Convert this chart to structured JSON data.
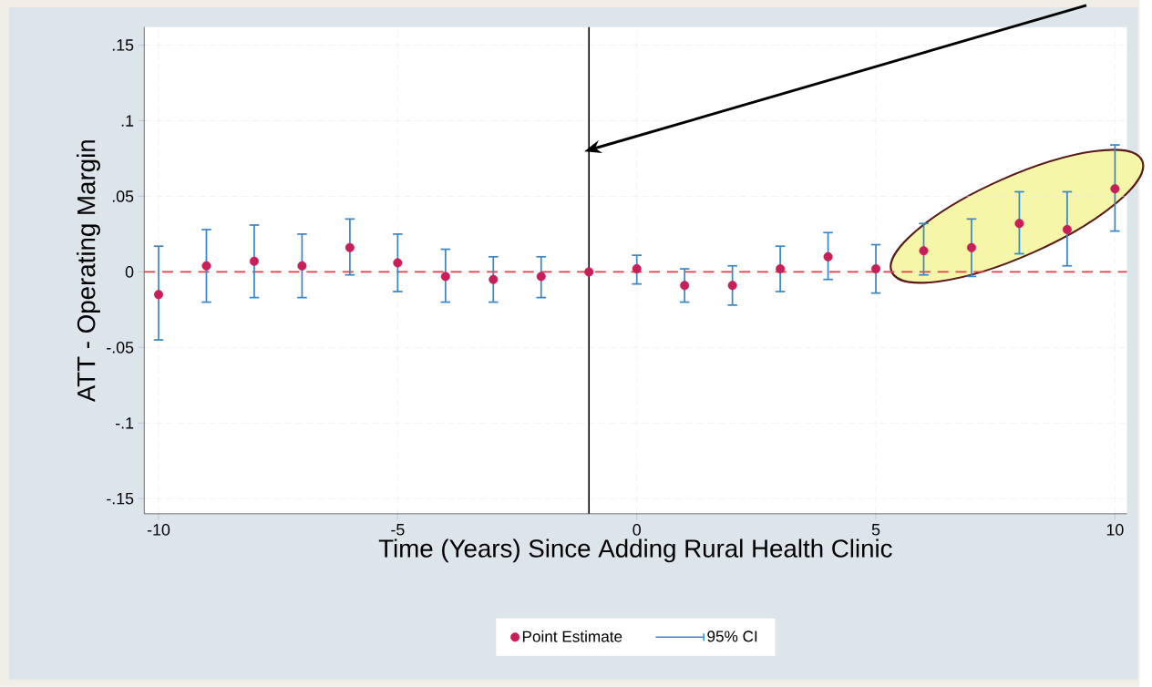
{
  "chart_data": {
    "type": "scatter",
    "xlabel": "Time (Years) Since Adding Rural Health Clinic",
    "ylabel": "ATT - Operating Margin",
    "x": [
      -10,
      -9,
      -8,
      -7,
      -6,
      -5,
      -4,
      -3,
      -2,
      -1,
      0,
      1,
      2,
      3,
      4,
      5,
      6,
      7,
      8,
      9,
      10
    ],
    "xlim": [
      -10.3,
      10.25
    ],
    "ylim": [
      -0.16,
      0.162
    ],
    "xticks": [
      -10,
      -5,
      0,
      5,
      10
    ],
    "yticks": [
      {
        "value": -0.15,
        "label": "-.15"
      },
      {
        "value": -0.1,
        "label": "-.1"
      },
      {
        "value": -0.05,
        "label": "-.05"
      },
      {
        "value": 0,
        "label": "0"
      },
      {
        "value": 0.05,
        "label": ".05"
      },
      {
        "value": 0.1,
        "label": ".1"
      },
      {
        "value": 0.15,
        "label": ".15"
      }
    ],
    "grid": true,
    "legend": "bottom",
    "annotations": [
      "95% CI"
    ],
    "series": [
      {
        "name": "Point Estimate",
        "marker": "circle",
        "color": "#c81e5a",
        "values": [
          -0.015,
          0.004,
          0.007,
          0.004,
          0.016,
          0.006,
          -0.003,
          -0.005,
          -0.003,
          0,
          0.002,
          -0.009,
          -0.009,
          0.002,
          0.01,
          0.002,
          0.014,
          0.016,
          0.032,
          0.028,
          0.055
        ],
        "errors": [
          [
            -0.045,
            0.017
          ],
          [
            -0.02,
            0.028
          ],
          [
            -0.017,
            0.031
          ],
          [
            -0.017,
            0.025
          ],
          [
            -0.002,
            0.035
          ],
          [
            -0.013,
            0.025
          ],
          [
            -0.02,
            0.015
          ],
          [
            -0.02,
            0.01
          ],
          [
            -0.017,
            0.01
          ],
          null,
          [
            -0.008,
            0.011
          ],
          [
            -0.02,
            0.002
          ],
          [
            -0.022,
            0.004
          ],
          [
            -0.013,
            0.017
          ],
          [
            -0.005,
            0.026
          ],
          [
            -0.014,
            0.018
          ],
          [
            -0.002,
            0.032
          ],
          [
            -0.003,
            0.035
          ],
          [
            0.012,
            0.053
          ],
          [
            0.004,
            0.053
          ],
          [
            0.027,
            0.084
          ]
        ]
      }
    ],
    "ref_lines": [
      {
        "axis": "y",
        "value": 0,
        "color": "#e0404a",
        "line_style": "dashed"
      },
      {
        "axis": "x",
        "value": -1,
        "color": "#000000",
        "line_style": "solid"
      }
    ]
  }
}
